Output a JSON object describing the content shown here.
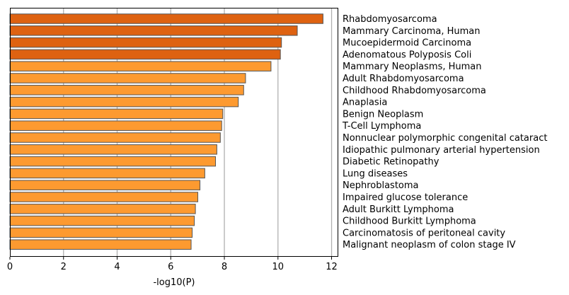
{
  "chart_data": {
    "type": "bar",
    "orientation": "horizontal",
    "xlabel": "-log10(P)",
    "ylabel": "",
    "xlim": [
      0,
      12.25
    ],
    "xticks": [
      0,
      2,
      4,
      6,
      8,
      10,
      12
    ],
    "grid": "vertical",
    "label_side": "right",
    "colors": {
      "top": "#de6211",
      "rest": "#fd9a30",
      "edge": "#555555",
      "grid": "#b0b0b0"
    },
    "categories": [
      "Rhabdomyosarcoma",
      "Mammary Carcinoma, Human",
      "Mucoepidermoid Carcinoma",
      "Adenomatous Polyposis Coli",
      "Mammary Neoplasms, Human",
      "Adult Rhabdomyosarcoma",
      "Childhood Rhabdomyosarcoma",
      "Anaplasia",
      "Benign Neoplasm",
      "T-Cell Lymphoma",
      "Nonnuclear polymorphic congenital cataract",
      "Idiopathic pulmonary arterial hypertension",
      "Diabetic Retinopathy",
      "Lung diseases",
      "Nephroblastoma",
      "Impaired glucose tolerance",
      "Adult Burkitt Lymphoma",
      "Childhood Burkitt Lymphoma",
      "Carcinomatosis of peritoneal cavity",
      "Malignant neoplasm of colon stage IV"
    ],
    "values": [
      11.68,
      10.72,
      10.13,
      10.09,
      9.74,
      8.79,
      8.72,
      8.52,
      7.94,
      7.9,
      7.85,
      7.72,
      7.67,
      7.27,
      7.09,
      7.01,
      6.92,
      6.88,
      6.8,
      6.76
    ],
    "highlight_count": 4
  }
}
